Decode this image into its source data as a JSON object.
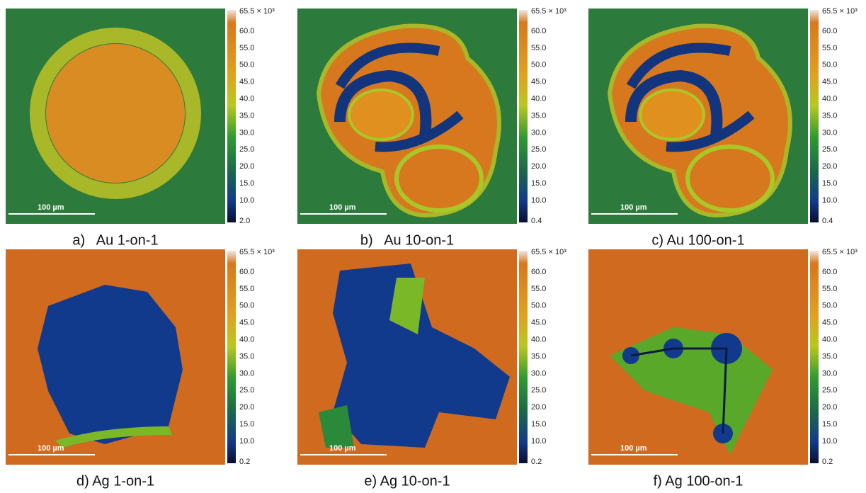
{
  "panels": [
    {
      "caption": "a)   Au 1-on-1",
      "scale_bar": "100 µm",
      "colorbar": [
        "65.5 × 10³",
        "60.0",
        "55.0",
        "50.0",
        "45.0",
        "40.0",
        "35.0",
        "30.0",
        "25.0",
        "20.0",
        "15.0",
        "10.0",
        "2.0"
      ]
    },
    {
      "caption": "b)   Au 10-on-1",
      "scale_bar": "100 µm",
      "colorbar": [
        "65.5 × 10³",
        "60.0",
        "55.0",
        "50.0",
        "45.0",
        "40.0",
        "35.0",
        "30.0",
        "25.0",
        "20.0",
        "15.0",
        "10.0",
        "0.4"
      ]
    },
    {
      "caption": "c) Au 100-on-1",
      "scale_bar": "100 µm",
      "colorbar": [
        "65.5 × 10³",
        "60.0",
        "55.0",
        "50.0",
        "45.0",
        "40.0",
        "35.0",
        "30.0",
        "25.0",
        "20.0",
        "15.0",
        "10.0",
        "0.4"
      ]
    },
    {
      "caption": "d) Ag 1-on-1",
      "scale_bar": "100 µm",
      "colorbar": [
        "65.5 × 10³",
        "60.0",
        "55.0",
        "50.0",
        "45.0",
        "40.0",
        "35.0",
        "30.0",
        "25.0",
        "20.0",
        "15.0",
        "10.0",
        "0.2"
      ]
    },
    {
      "caption": "e) Ag 10-on-1",
      "scale_bar": "100 µm",
      "colorbar": [
        "65.5 × 10³",
        "60.0",
        "55.0",
        "50.0",
        "45.0",
        "40.0",
        "35.0",
        "30.0",
        "25.0",
        "20.0",
        "15.0",
        "10.0",
        "0.2"
      ]
    },
    {
      "caption": "f) Ag 100-on-1",
      "scale_bar": "100 µm",
      "colorbar": [
        "65.5 × 10³",
        "60.0",
        "55.0",
        "50.0",
        "45.0",
        "40.0",
        "35.0",
        "30.0",
        "25.0",
        "20.0",
        "15.0",
        "10.0",
        "0.2"
      ]
    }
  ]
}
